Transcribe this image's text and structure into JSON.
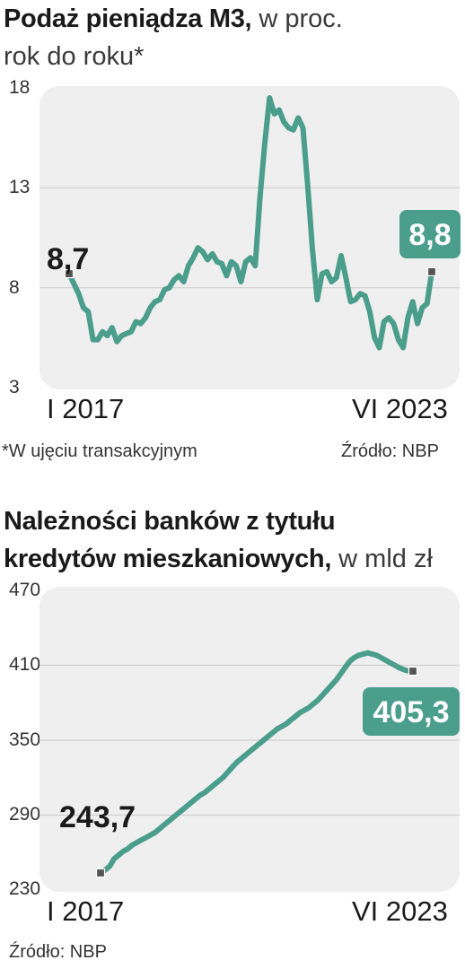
{
  "chart_data": [
    {
      "type": "line",
      "title": "Podaż pieniądza M3,",
      "subtitle": "w proc.",
      "subtitle2": "rok do roku*",
      "ylim": [
        3,
        18
      ],
      "yticks": [
        "18",
        "13",
        "8",
        "3"
      ],
      "x_start_label": "I 2017",
      "x_end_label": "VI 2023",
      "start_label": "8,7",
      "end_label": "8,8",
      "footnote": "*W ujęciu transakcyjnym",
      "source": "Źródło: NBP",
      "colors": {
        "line": "#4a9e8b",
        "panel": "#efefef",
        "grid": "#cfcfcf"
      },
      "grid": true,
      "series": [
        {
          "values": [
            8.7,
            8.2,
            7.7,
            7.0,
            6.8,
            5.4,
            5.4,
            5.8,
            5.6,
            6.0,
            5.3,
            5.6,
            5.7,
            5.8,
            6.3,
            6.2,
            6.5,
            7.0,
            7.3,
            7.4,
            7.9,
            8.0,
            8.4,
            8.6,
            8.3,
            9.1,
            9.5,
            10.0,
            9.8,
            9.4,
            9.7,
            9.3,
            9.2,
            8.6,
            9.3,
            9.1,
            8.3,
            9.3,
            9.5,
            9.1,
            12.5,
            15.2,
            17.5,
            16.7,
            16.9,
            16.3,
            16.0,
            15.9,
            16.5,
            16.0,
            13.1,
            9.9,
            7.4,
            8.7,
            8.8,
            8.3,
            8.5,
            9.6,
            8.5,
            7.3,
            7.4,
            7.7,
            7.6,
            6.8,
            5.5,
            5.0,
            6.3,
            6.5,
            6.2,
            5.4,
            5.0,
            6.5,
            7.3,
            6.2,
            7.0,
            7.2,
            8.8
          ]
        }
      ]
    },
    {
      "type": "line",
      "title": "Należności banków z tytułu",
      "title2": "kredytów mieszkaniowych,",
      "subtitle": "w mld zł",
      "ylim": [
        230,
        470
      ],
      "yticks": [
        "470",
        "410",
        "350",
        "290",
        "230"
      ],
      "x_start_label": "I 2017",
      "x_end_label": "VI 2023",
      "start_label": "243,7",
      "end_label": "405,3",
      "source": "Źródło: NBP",
      "colors": {
        "line": "#4a9e8b",
        "panel": "#efefef",
        "grid": "#cfcfcf"
      },
      "grid": true,
      "series": [
        {
          "values": [
            243.7,
            246,
            249,
            255,
            258,
            261,
            263,
            266,
            268,
            270,
            272,
            274,
            276,
            279,
            282,
            285,
            288,
            291,
            294,
            297,
            300,
            303,
            306,
            308,
            311,
            314,
            317,
            320,
            324,
            328,
            332,
            335,
            338,
            341,
            344,
            347,
            350,
            353,
            356,
            359,
            361,
            363,
            366,
            369,
            372,
            374,
            376,
            379,
            382,
            386,
            390,
            394,
            398,
            403,
            408,
            413,
            416,
            418,
            419,
            420,
            419,
            418,
            416,
            414,
            412,
            410,
            408,
            406.5,
            405.5,
            405.3
          ]
        }
      ]
    }
  ]
}
